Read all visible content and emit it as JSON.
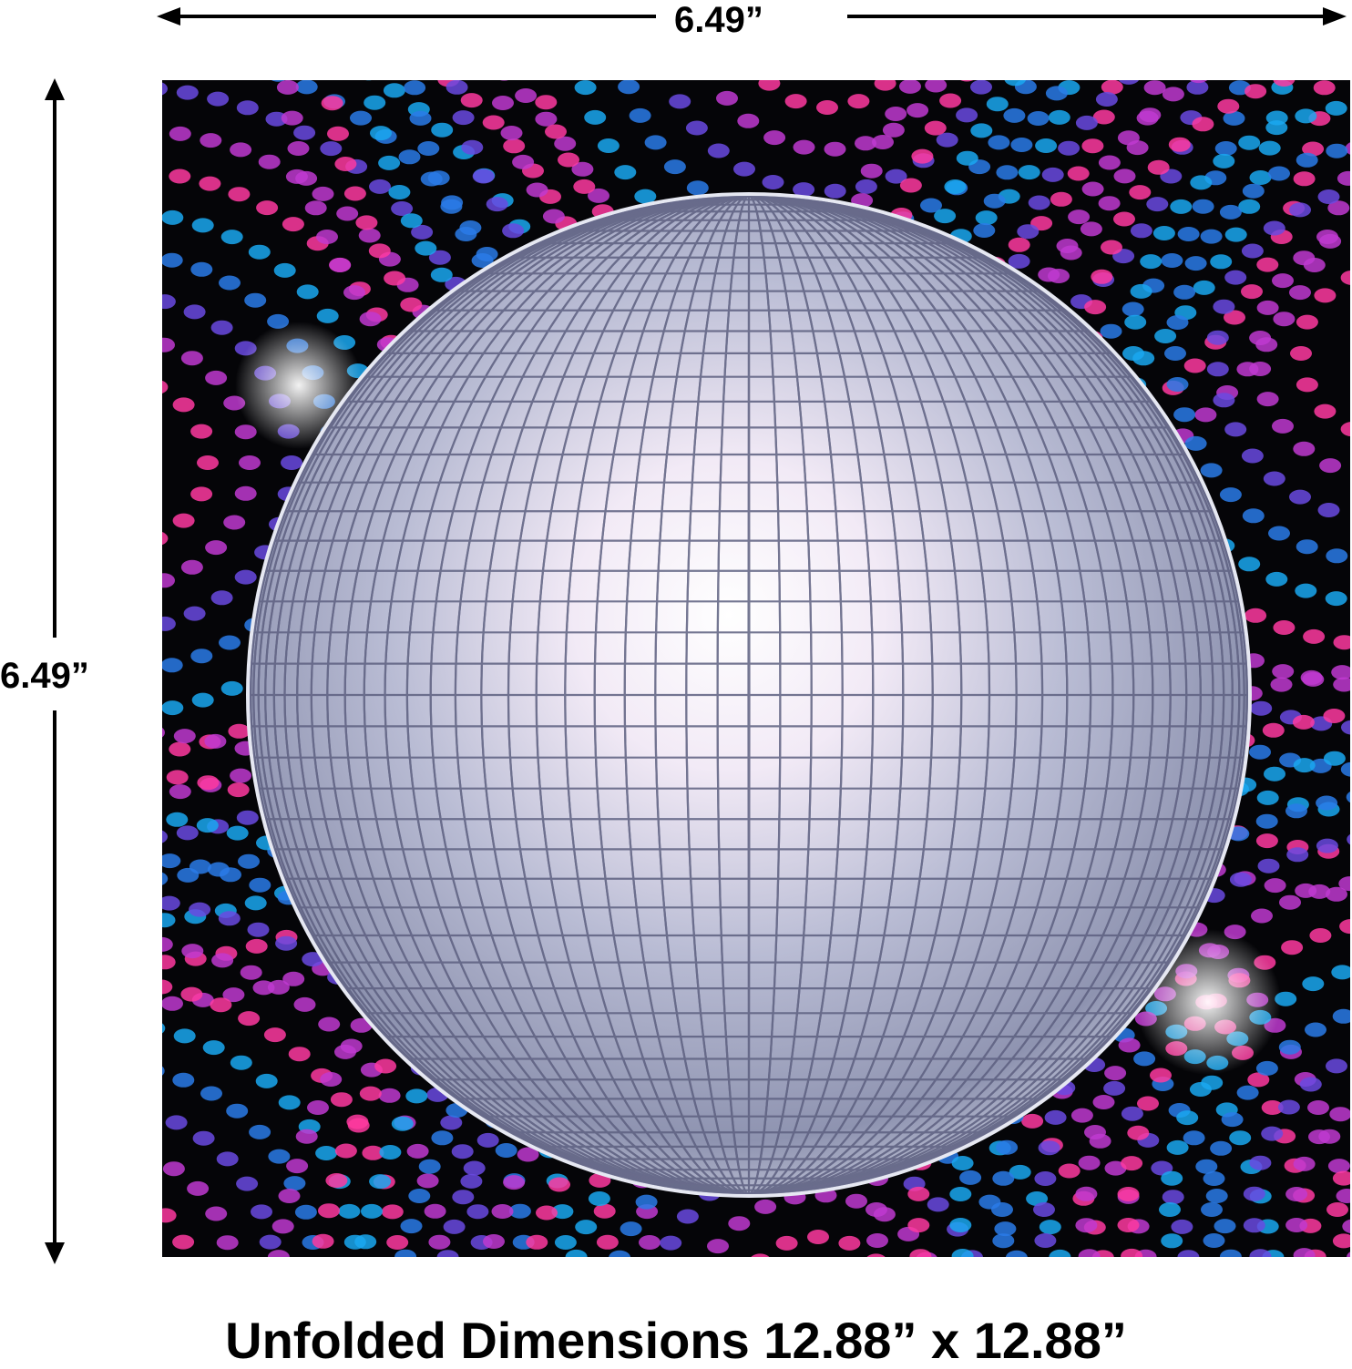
{
  "dimensions": {
    "width_label": "6.49”",
    "height_label": "6.49”",
    "caption": "Unfolded Dimensions 12.88” x 12.88”"
  },
  "napkin": {
    "subject": "disco-ball",
    "background": "#000000",
    "dot_colors": [
      "#ff3aa0",
      "#c03ad0",
      "#6a4ae0",
      "#2a7be8",
      "#1aa8f0"
    ],
    "ball_color": "#cfd3e6"
  }
}
